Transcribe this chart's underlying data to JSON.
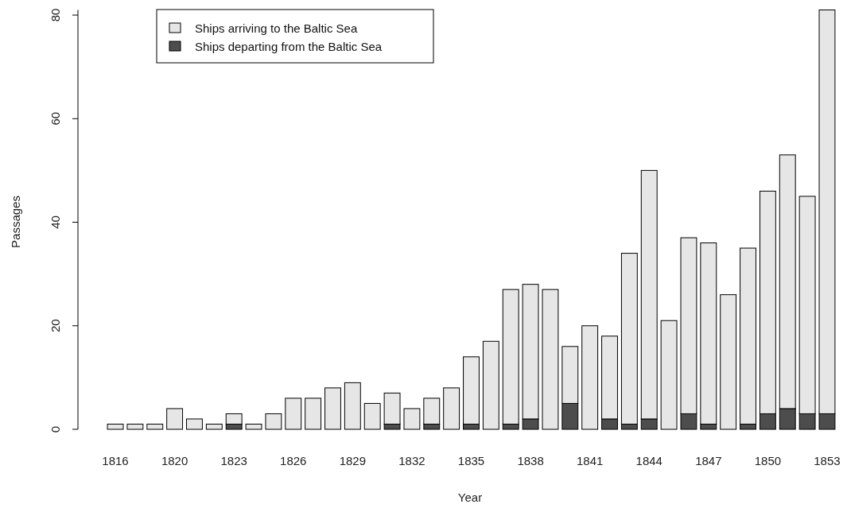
{
  "chart_data": {
    "type": "bar",
    "stacked": true,
    "xlabel": "Year",
    "ylabel": "Passages",
    "categories": [
      "1816",
      null,
      null,
      "1820",
      null,
      null,
      "1823",
      null,
      null,
      "1826",
      null,
      null,
      "1829",
      null,
      null,
      "1832",
      null,
      null,
      "1835",
      null,
      null,
      "1838",
      null,
      null,
      "1841",
      null,
      null,
      "1844",
      null,
      null,
      "1847",
      null,
      null,
      "1850",
      null,
      null,
      "1853"
    ],
    "series": [
      {
        "name": "Ships departing from the Baltic Sea",
        "color": "#4d4d4d",
        "values": [
          0,
          0,
          0,
          0,
          0,
          0,
          1,
          0,
          0,
          0,
          0,
          0,
          0,
          0,
          1,
          0,
          1,
          0,
          1,
          0,
          1,
          2,
          0,
          5,
          0,
          2,
          1,
          2,
          0,
          3,
          1,
          0,
          1,
          3,
          4,
          3,
          3
        ]
      },
      {
        "name": "Ships arriving to the Baltic Sea",
        "color": "#e6e6e6",
        "values": [
          1,
          1,
          1,
          4,
          2,
          1,
          2,
          1,
          3,
          6,
          6,
          8,
          9,
          5,
          6,
          4,
          5,
          8,
          13,
          17,
          26,
          26,
          27,
          11,
          20,
          16,
          33,
          48,
          21,
          34,
          35,
          26,
          34,
          43,
          49,
          42,
          78
        ]
      }
    ],
    "ylim": [
      0,
      81
    ],
    "yticks": [
      0,
      20,
      40,
      60,
      80
    ],
    "legend": "top left"
  }
}
